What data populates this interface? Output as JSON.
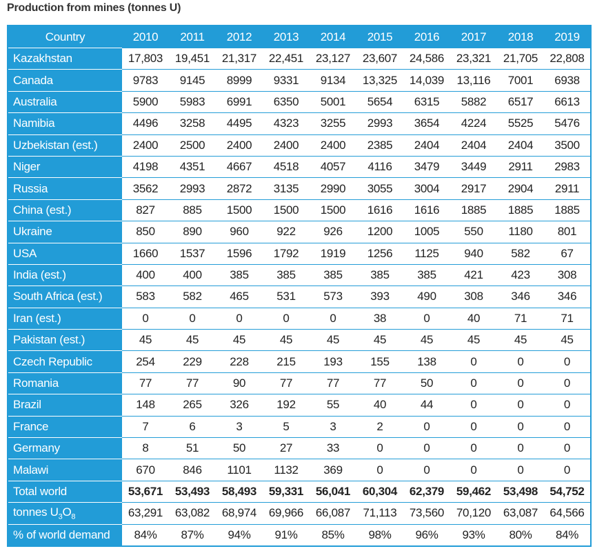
{
  "title": "Production from mines (tonnes U)",
  "colors": {
    "header_bg": "#229cd7",
    "header_text": "#ffffff",
    "cell_text": "#222222"
  },
  "table": {
    "headers": [
      "Country",
      "2010",
      "2011",
      "2012",
      "2013",
      "2014",
      "2015",
      "2016",
      "2017",
      "2018",
      "2019"
    ],
    "rows": [
      {
        "country": "Kazakhstan",
        "values": [
          "17,803",
          "19,451",
          "21,317",
          "22,451",
          "23,127",
          "23,607",
          "24,586",
          "23,321",
          "21,705",
          "22,808"
        ]
      },
      {
        "country": "Canada",
        "values": [
          "9783",
          "9145",
          "8999",
          "9331",
          "9134",
          "13,325",
          "14,039",
          "13,116",
          "7001",
          "6938"
        ]
      },
      {
        "country": "Australia",
        "values": [
          "5900",
          "5983",
          "6991",
          "6350",
          "5001",
          "5654",
          "6315",
          "5882",
          "6517",
          "6613"
        ]
      },
      {
        "country": "Namibia",
        "values": [
          "4496",
          "3258",
          "4495",
          "4323",
          "3255",
          "2993",
          "3654",
          "4224",
          "5525",
          "5476"
        ]
      },
      {
        "country": "Uzbekistan (est.)",
        "values": [
          "2400",
          "2500",
          "2400",
          "2400",
          "2400",
          "2385",
          "2404",
          "2404",
          "2404",
          "3500"
        ]
      },
      {
        "country": "Niger",
        "values": [
          "4198",
          "4351",
          "4667",
          "4518",
          "4057",
          "4116",
          "3479",
          "3449",
          "2911",
          "2983"
        ]
      },
      {
        "country": "Russia",
        "values": [
          "3562",
          "2993",
          "2872",
          "3135",
          "2990",
          "3055",
          "3004",
          "2917",
          "2904",
          "2911"
        ]
      },
      {
        "country": "China (est.)",
        "values": [
          "827",
          "885",
          "1500",
          "1500",
          "1500",
          "1616",
          "1616",
          "1885",
          "1885",
          "1885"
        ]
      },
      {
        "country": "Ukraine",
        "values": [
          "850",
          "890",
          "960",
          "922",
          "926",
          "1200",
          "1005",
          "550",
          "1180",
          "801"
        ]
      },
      {
        "country": "USA",
        "values": [
          "1660",
          "1537",
          "1596",
          "1792",
          "1919",
          "1256",
          "1125",
          "940",
          "582",
          "67"
        ]
      },
      {
        "country": "India (est.)",
        "values": [
          "400",
          "400",
          "385",
          "385",
          "385",
          "385",
          "385",
          "421",
          "423",
          "308"
        ]
      },
      {
        "country": "South Africa (est.)",
        "values": [
          "583",
          "582",
          "465",
          "531",
          "573",
          "393",
          "490",
          "308",
          "346",
          "346"
        ]
      },
      {
        "country": "Iran (est.)",
        "values": [
          "0",
          "0",
          "0",
          "0",
          "0",
          "38",
          "0",
          "40",
          "71",
          "71"
        ]
      },
      {
        "country": "Pakistan (est.)",
        "values": [
          "45",
          "45",
          "45",
          "45",
          "45",
          "45",
          "45",
          "45",
          "45",
          "45"
        ]
      },
      {
        "country": "Czech Republic",
        "values": [
          "254",
          "229",
          "228",
          "215",
          "193",
          "155",
          "138",
          "0",
          "0",
          "0"
        ]
      },
      {
        "country": "Romania",
        "values": [
          "77",
          "77",
          "90",
          "77",
          "77",
          "77",
          "50",
          "0",
          "0",
          "0"
        ]
      },
      {
        "country": "Brazil",
        "values": [
          "148",
          "265",
          "326",
          "192",
          "55",
          "40",
          "44",
          "0",
          "0",
          "0"
        ]
      },
      {
        "country": "France",
        "values": [
          "7",
          "6",
          "3",
          "5",
          "3",
          "2",
          "0",
          "0",
          "0",
          "0"
        ]
      },
      {
        "country": "Germany",
        "values": [
          "8",
          "51",
          "50",
          "27",
          "33",
          "0",
          "0",
          "0",
          "0",
          "0"
        ]
      },
      {
        "country": "Malawi",
        "values": [
          "670",
          "846",
          "1101",
          "1132",
          "369",
          "0",
          "0",
          "0",
          "0",
          "0"
        ]
      },
      {
        "country": "Total world",
        "total": true,
        "values": [
          "53,671",
          "53,493",
          "58,493",
          "59,331",
          "56,041",
          "60,304",
          "62,379",
          "59,462",
          "53,498",
          "54,752"
        ]
      },
      {
        "country": "tonnes U3O8",
        "values": [
          "63,291",
          "63,082",
          "68,974",
          "69,966",
          "66,087",
          "71,113",
          "73,560",
          "70,120",
          "63,087",
          "64,566"
        ]
      },
      {
        "country": "% of world demand",
        "values": [
          "84%",
          "87%",
          "94%",
          "91%",
          "85%",
          "98%",
          "96%",
          "93%",
          "80%",
          "84%"
        ]
      }
    ]
  }
}
